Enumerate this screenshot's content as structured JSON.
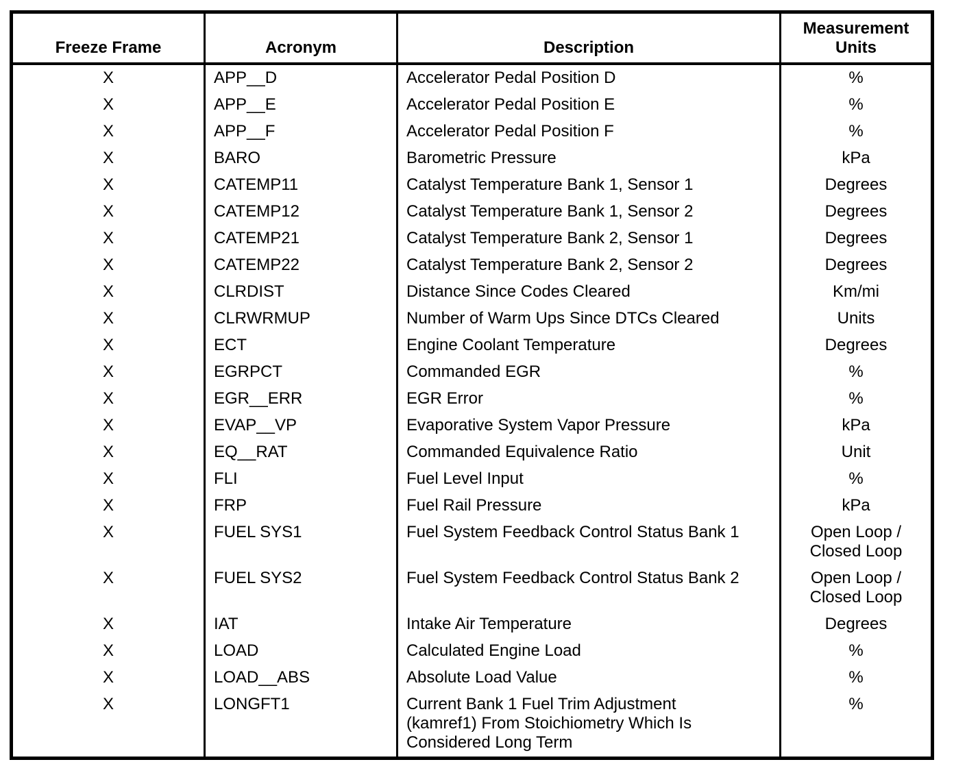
{
  "page": {
    "background_color": "#ffffff",
    "text_color": "#000000"
  },
  "table": {
    "column_keys": [
      "freeze",
      "acronym",
      "description",
      "units"
    ],
    "headers": [
      {
        "key": "freeze",
        "label": "Freeze Frame"
      },
      {
        "key": "acronym",
        "label": "Acronym"
      },
      {
        "key": "description",
        "label": "Description"
      },
      {
        "key": "units",
        "label": "Measurement\nUnits"
      }
    ],
    "rows": [
      {
        "freeze": "X",
        "acronym": "APP__D",
        "description": "Accelerator Pedal Position D",
        "units": "%"
      },
      {
        "freeze": "X",
        "acronym": "APP__E",
        "description": "Accelerator Pedal Position E",
        "units": "%"
      },
      {
        "freeze": "X",
        "acronym": "APP__F",
        "description": "Accelerator Pedal Position F",
        "units": "%"
      },
      {
        "freeze": "X",
        "acronym": "BARO",
        "description": "Barometric Pressure",
        "units": "kPa"
      },
      {
        "freeze": "X",
        "acronym": "CATEMP11",
        "description": "Catalyst Temperature Bank 1, Sensor 1",
        "units": "Degrees"
      },
      {
        "freeze": "X",
        "acronym": "CATEMP12",
        "description": "Catalyst Temperature Bank 1, Sensor 2",
        "units": "Degrees"
      },
      {
        "freeze": "X",
        "acronym": "CATEMP21",
        "description": "Catalyst Temperature Bank 2, Sensor 1",
        "units": "Degrees"
      },
      {
        "freeze": "X",
        "acronym": "CATEMP22",
        "description": "Catalyst Temperature Bank 2, Sensor 2",
        "units": "Degrees"
      },
      {
        "freeze": "X",
        "acronym": "CLRDIST",
        "description": "Distance Since Codes Cleared",
        "units": "Km/mi"
      },
      {
        "freeze": "X",
        "acronym": "CLRWRMUP",
        "description": "Number of Warm Ups Since DTCs Cleared",
        "units": "Units"
      },
      {
        "freeze": "X",
        "acronym": "ECT",
        "description": "Engine Coolant Temperature",
        "units": "Degrees"
      },
      {
        "freeze": "X",
        "acronym": "EGRPCT",
        "description": "Commanded EGR",
        "units": "%"
      },
      {
        "freeze": "X",
        "acronym": "EGR__ERR",
        "description": "EGR Error",
        "units": "%"
      },
      {
        "freeze": "X",
        "acronym": "EVAP__VP",
        "description": "Evaporative System Vapor Pressure",
        "units": "kPa"
      },
      {
        "freeze": "X",
        "acronym": "EQ__RAT",
        "description": "Commanded Equivalence Ratio",
        "units": "Unit"
      },
      {
        "freeze": "X",
        "acronym": "FLI",
        "description": "Fuel Level Input",
        "units": "%"
      },
      {
        "freeze": "X",
        "acronym": "FRP",
        "description": "Fuel Rail Pressure",
        "units": "kPa"
      },
      {
        "freeze": "X",
        "acronym": "FUEL SYS1",
        "description": "Fuel System Feedback Control Status Bank 1",
        "units": "Open Loop /\nClosed Loop"
      },
      {
        "freeze": "X",
        "acronym": "FUEL SYS2",
        "description": "Fuel System Feedback Control Status Bank 2",
        "units": "Open Loop /\nClosed Loop"
      },
      {
        "freeze": "X",
        "acronym": "IAT",
        "description": "Intake Air Temperature",
        "units": "Degrees"
      },
      {
        "freeze": "X",
        "acronym": "LOAD",
        "description": "Calculated Engine Load",
        "units": "%"
      },
      {
        "freeze": "X",
        "acronym": "LOAD__ABS",
        "description": "Absolute Load Value",
        "units": "%"
      },
      {
        "freeze": "X",
        "acronym": "LONGFT1",
        "description": "Current Bank 1 Fuel Trim Adjustment\n(kamref1) From Stoichiometry Which Is\nConsidered Long Term",
        "units": "%"
      }
    ]
  }
}
